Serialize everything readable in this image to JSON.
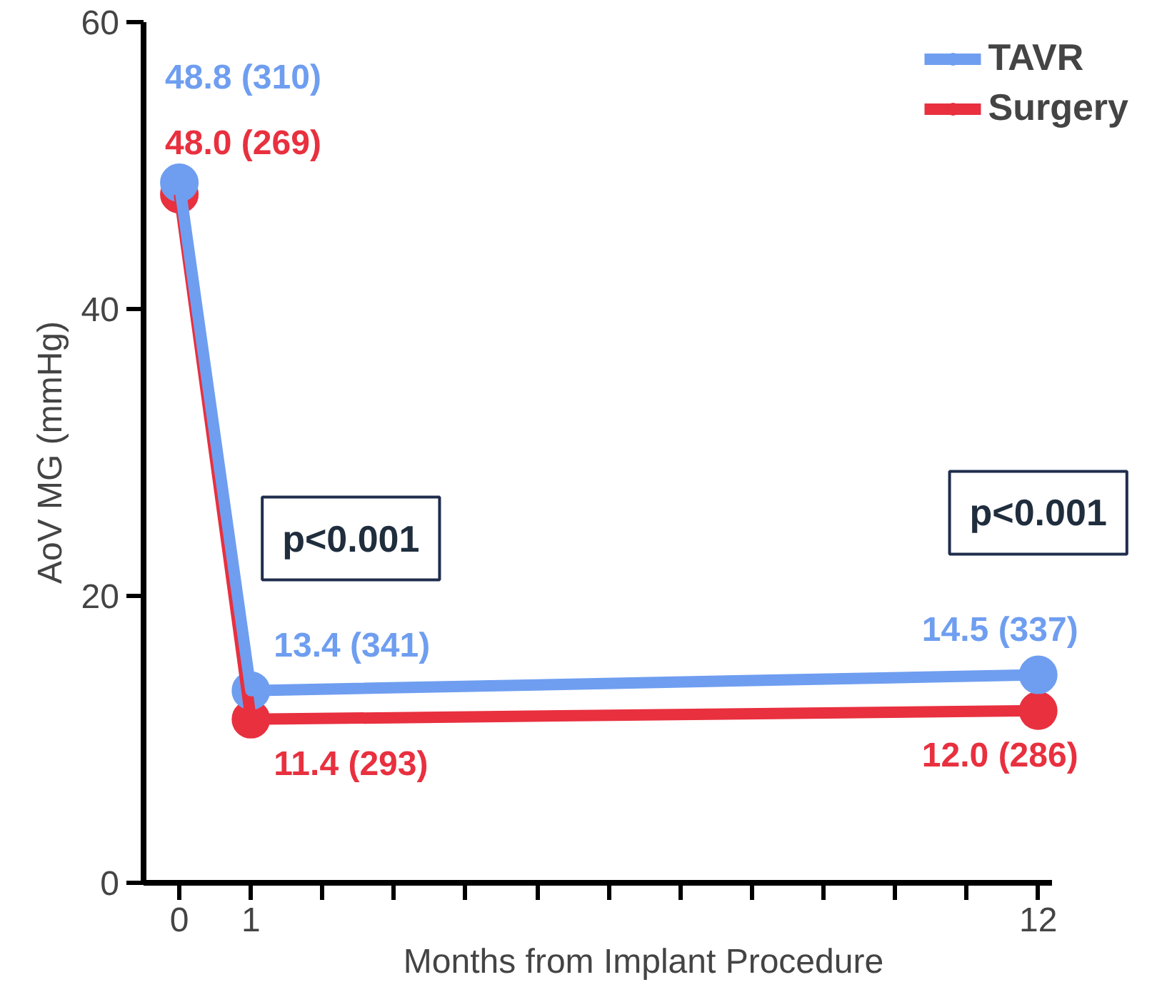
{
  "chart_data": {
    "type": "line",
    "xlabel": "Months from Implant Procedure",
    "ylabel": "AoV MG (mmHg)",
    "x": [
      0,
      1,
      12
    ],
    "series": [
      {
        "name": "TAVR",
        "color": "#6f9ef0",
        "values": [
          48.8,
          13.4,
          14.5
        ],
        "value_labels": [
          "48.8 (310)",
          "13.4 (341)",
          "14.5 (337)"
        ]
      },
      {
        "name": "Surgery",
        "color": "#e8303f",
        "values": [
          48.0,
          11.4,
          12.0
        ],
        "value_labels": [
          "48.0 (269)",
          "11.4 (293)",
          "12.0 (286)"
        ]
      }
    ],
    "annotations": [
      "p<0.001",
      "p<0.001"
    ],
    "xlim": [
      -0.5,
      12.2
    ],
    "ylim": [
      0,
      60
    ],
    "xticks": [
      0,
      1,
      {
        "value": 2,
        "label": null
      },
      {
        "value": 3,
        "label": null
      },
      {
        "value": 4,
        "label": null
      },
      {
        "value": 5,
        "label": null
      },
      {
        "value": 6,
        "label": null
      },
      {
        "value": 7,
        "label": null
      },
      {
        "value": 8,
        "label": null
      },
      {
        "value": 9,
        "label": null
      },
      {
        "value": 10,
        "label": null
      },
      {
        "value": 11,
        "label": null
      },
      12
    ],
    "yticks": [
      0,
      20,
      40,
      60
    ],
    "grid": false,
    "legend": "top right",
    "marker": "circle",
    "line_style": "solid"
  }
}
